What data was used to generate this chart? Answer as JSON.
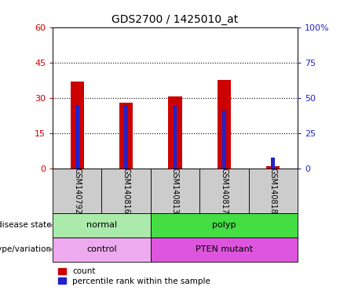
{
  "title": "GDS2700 / 1425010_at",
  "samples": [
    "GSM140792",
    "GSM140816",
    "GSM140813",
    "GSM140817",
    "GSM140818"
  ],
  "red_values": [
    37.0,
    28.0,
    30.5,
    37.5,
    1.0
  ],
  "blue_values_pct": [
    45,
    45,
    45,
    41,
    8
  ],
  "ylim_left": [
    0,
    60
  ],
  "ylim_right": [
    0,
    100
  ],
  "yticks_left": [
    0,
    15,
    30,
    45,
    60
  ],
  "yticks_right": [
    0,
    25,
    50,
    75,
    100
  ],
  "ytick_labels_left": [
    "0",
    "15",
    "30",
    "45",
    "60"
  ],
  "ytick_labels_right": [
    "0",
    "25",
    "50",
    "75",
    "100%"
  ],
  "red_bar_width": 0.28,
  "blue_bar_width": 0.08,
  "red_color": "#cc0000",
  "blue_color": "#2222cc",
  "grid_color": "black",
  "disease_state": [
    {
      "label": "normal",
      "color": "#aaeaaa",
      "span": [
        0,
        2
      ]
    },
    {
      "label": "polyp",
      "color": "#44dd44",
      "span": [
        2,
        5
      ]
    }
  ],
  "genotype": [
    {
      "label": "control",
      "color": "#eeaaee",
      "span": [
        0,
        2
      ]
    },
    {
      "label": "PTEN mutant",
      "color": "#dd55dd",
      "span": [
        2,
        5
      ]
    }
  ],
  "legend_count_label": "count",
  "legend_pct_label": "percentile rank within the sample",
  "row_label_disease": "disease state",
  "row_label_genotype": "genotype/variation",
  "bg_color": "#ffffff",
  "tick_area_bg": "#cccccc"
}
